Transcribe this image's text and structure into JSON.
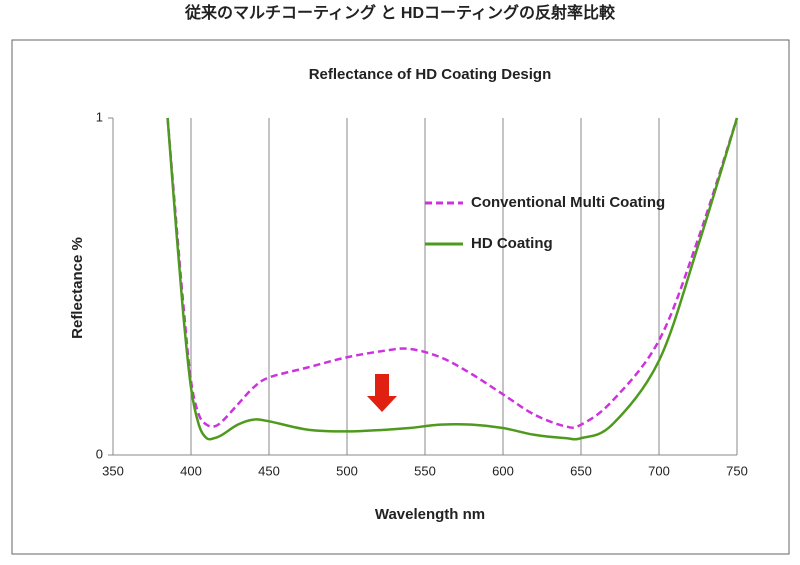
{
  "heading": "従来のマルチコーティング と HDコーティングの反射率比較",
  "chart_data": {
    "type": "line",
    "title": "Reflectance of HD Coating Design",
    "x_label": "Wavelength nm",
    "y_label": "Reflectance %",
    "x": [
      385,
      390,
      395,
      400,
      405,
      410,
      415,
      420,
      430,
      440,
      450,
      475,
      500,
      525,
      540,
      560,
      580,
      600,
      620,
      640,
      650,
      670,
      700,
      725,
      750
    ],
    "series": [
      {
        "name": "Conventional Multi Coating",
        "color": "#cc33dd",
        "dashed": true,
        "values": [
          1.0,
          0.72,
          0.45,
          0.22,
          0.12,
          0.09,
          0.085,
          0.1,
          0.15,
          0.2,
          0.23,
          0.26,
          0.29,
          0.31,
          0.315,
          0.29,
          0.24,
          0.18,
          0.12,
          0.085,
          0.09,
          0.16,
          0.34,
          0.64,
          1.0
        ]
      },
      {
        "name": "HD Coating",
        "color": "#4e9a1e",
        "dashed": false,
        "values": [
          1.0,
          0.7,
          0.42,
          0.2,
          0.09,
          0.05,
          0.05,
          0.06,
          0.09,
          0.105,
          0.1,
          0.075,
          0.07,
          0.075,
          0.08,
          0.09,
          0.09,
          0.08,
          0.06,
          0.05,
          0.05,
          0.09,
          0.28,
          0.62,
          1.0
        ]
      }
    ],
    "xlim": [
      350,
      750
    ],
    "xticks": [
      350,
      400,
      450,
      500,
      550,
      600,
      650,
      700,
      750
    ],
    "ylim": [
      0,
      1
    ],
    "yticks": [
      0,
      1
    ],
    "grid": true
  }
}
